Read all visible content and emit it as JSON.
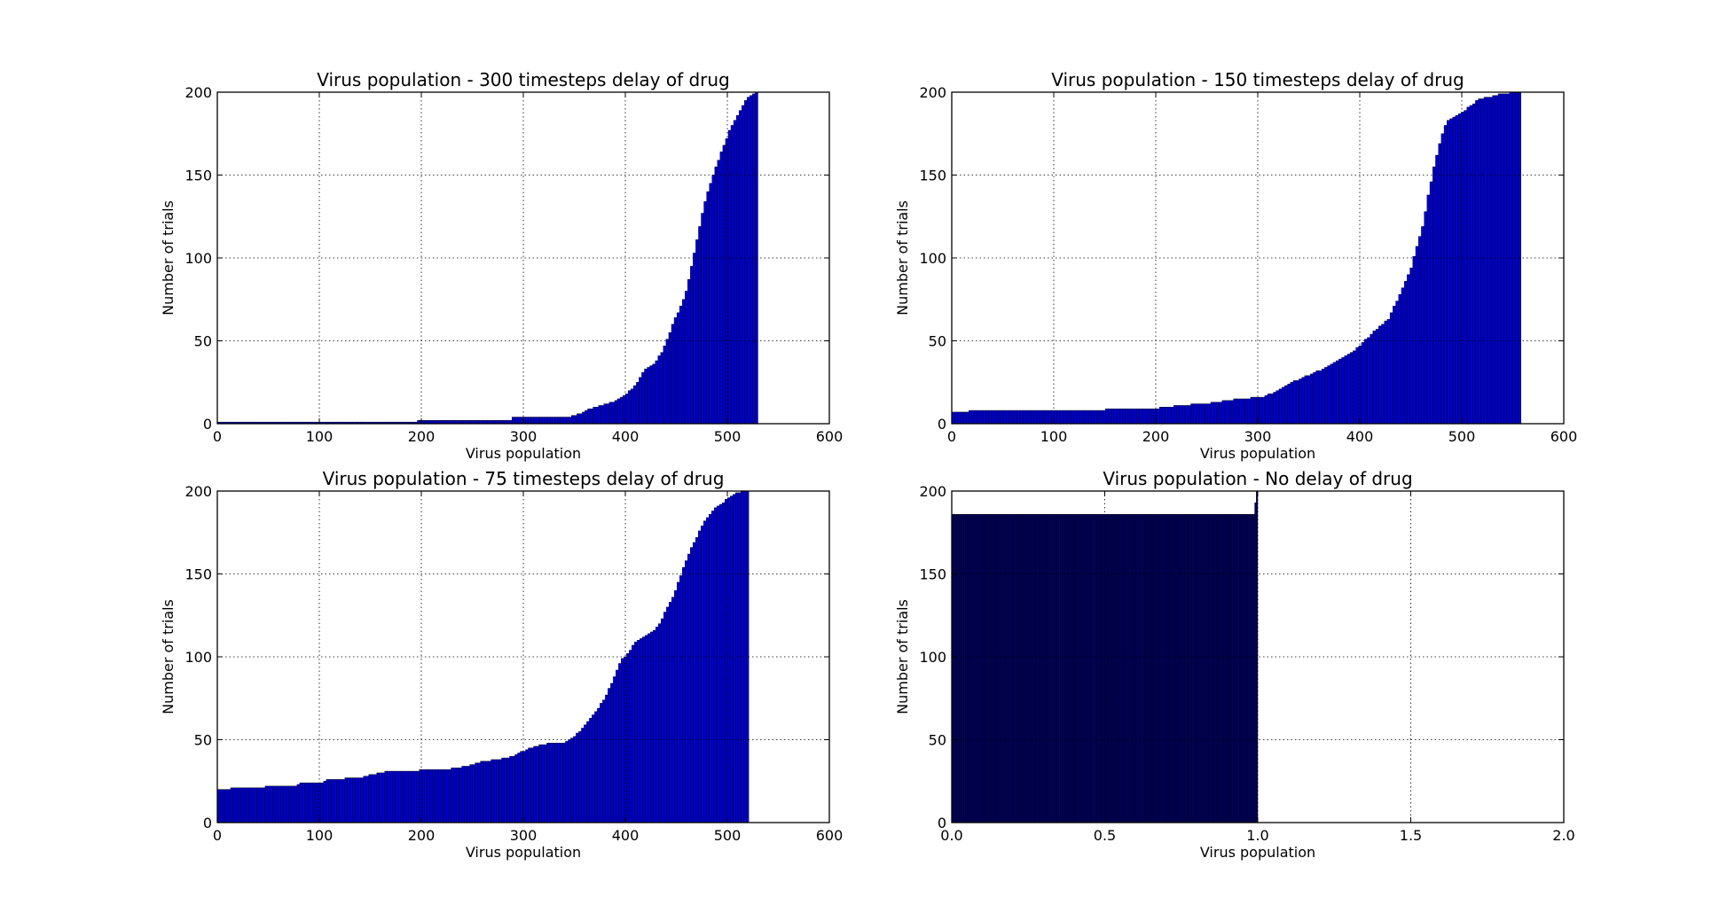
{
  "chart_data": [
    {
      "type": "bar",
      "title": "Virus population - 300 timesteps delay of drug",
      "xlabel": "Virus population",
      "ylabel": "Number of trials",
      "xlim": [
        0,
        600
      ],
      "ylim": [
        0,
        200
      ],
      "xticks": [
        "0",
        "100",
        "200",
        "300",
        "400",
        "500",
        "600"
      ],
      "yticks": [
        "0",
        "50",
        "100",
        "150",
        "200"
      ],
      "grid": true,
      "bar_color": "#0000cc",
      "curve": [
        [
          0,
          1
        ],
        [
          195,
          1
        ],
        [
          195,
          2
        ],
        [
          290,
          2
        ],
        [
          290,
          4
        ],
        [
          345,
          4
        ],
        [
          355,
          6
        ],
        [
          365,
          9
        ],
        [
          375,
          11
        ],
        [
          388,
          13
        ],
        [
          398,
          17
        ],
        [
          405,
          20
        ],
        [
          412,
          25
        ],
        [
          418,
          32
        ],
        [
          428,
          36
        ],
        [
          435,
          42
        ],
        [
          442,
          52
        ],
        [
          448,
          62
        ],
        [
          455,
          72
        ],
        [
          460,
          80
        ],
        [
          465,
          95
        ],
        [
          470,
          110
        ],
        [
          475,
          125
        ],
        [
          480,
          138
        ],
        [
          486,
          150
        ],
        [
          492,
          160
        ],
        [
          498,
          170
        ],
        [
          503,
          178
        ],
        [
          510,
          186
        ],
        [
          516,
          193
        ],
        [
          522,
          198
        ],
        [
          528,
          200
        ],
        [
          530,
          200
        ]
      ]
    },
    {
      "type": "bar",
      "title": "Virus population - 150 timesteps delay of drug",
      "xlabel": "Virus population",
      "ylabel": "Number of trials",
      "xlim": [
        0,
        600
      ],
      "ylim": [
        0,
        200
      ],
      "xticks": [
        "0",
        "100",
        "200",
        "300",
        "400",
        "500",
        "600"
      ],
      "yticks": [
        "0",
        "50",
        "100",
        "150",
        "200"
      ],
      "grid": true,
      "bar_color": "#0000cc",
      "curve": [
        [
          0,
          7
        ],
        [
          17,
          7
        ],
        [
          17,
          8
        ],
        [
          150,
          8
        ],
        [
          150,
          9
        ],
        [
          200,
          9
        ],
        [
          210,
          10
        ],
        [
          225,
          11
        ],
        [
          245,
          12
        ],
        [
          260,
          13
        ],
        [
          280,
          15
        ],
        [
          305,
          16
        ],
        [
          320,
          20
        ],
        [
          330,
          24
        ],
        [
          345,
          28
        ],
        [
          360,
          32
        ],
        [
          375,
          37
        ],
        [
          390,
          42
        ],
        [
          400,
          47
        ],
        [
          410,
          53
        ],
        [
          420,
          59
        ],
        [
          428,
          63
        ],
        [
          435,
          72
        ],
        [
          442,
          82
        ],
        [
          450,
          93
        ],
        [
          456,
          107
        ],
        [
          462,
          120
        ],
        [
          468,
          140
        ],
        [
          473,
          155
        ],
        [
          478,
          168
        ],
        [
          485,
          182
        ],
        [
          495,
          186
        ],
        [
          505,
          190
        ],
        [
          515,
          195
        ],
        [
          525,
          197
        ],
        [
          540,
          199
        ],
        [
          556,
          200
        ],
        [
          558,
          200
        ]
      ]
    },
    {
      "type": "bar",
      "title": "Virus population - 75 timesteps delay of drug",
      "xlabel": "Virus population",
      "ylabel": "Number of trials",
      "xlim": [
        0,
        600
      ],
      "ylim": [
        0,
        200
      ],
      "xticks": [
        "0",
        "100",
        "200",
        "300",
        "400",
        "500",
        "600"
      ],
      "yticks": [
        "0",
        "50",
        "100",
        "150",
        "200"
      ],
      "grid": true,
      "bar_color": "#0000cc",
      "curve": [
        [
          0,
          20
        ],
        [
          12,
          20
        ],
        [
          15,
          21
        ],
        [
          47,
          21
        ],
        [
          47,
          22
        ],
        [
          78,
          22
        ],
        [
          80,
          24
        ],
        [
          105,
          24
        ],
        [
          107,
          26
        ],
        [
          125,
          26
        ],
        [
          127,
          27
        ],
        [
          140,
          27
        ],
        [
          150,
          29
        ],
        [
          160,
          30
        ],
        [
          170,
          31
        ],
        [
          225,
          32
        ],
        [
          245,
          34
        ],
        [
          262,
          37
        ],
        [
          285,
          39
        ],
        [
          300,
          43
        ],
        [
          312,
          46
        ],
        [
          325,
          48
        ],
        [
          340,
          48
        ],
        [
          350,
          52
        ],
        [
          360,
          58
        ],
        [
          370,
          66
        ],
        [
          380,
          75
        ],
        [
          388,
          86
        ],
        [
          395,
          97
        ],
        [
          402,
          102
        ],
        [
          412,
          110
        ],
        [
          422,
          113
        ],
        [
          432,
          118
        ],
        [
          440,
          128
        ],
        [
          448,
          138
        ],
        [
          455,
          150
        ],
        [
          462,
          162
        ],
        [
          470,
          172
        ],
        [
          478,
          182
        ],
        [
          488,
          190
        ],
        [
          500,
          195
        ],
        [
          510,
          199
        ],
        [
          518,
          200
        ],
        [
          521,
          200
        ]
      ]
    },
    {
      "type": "bar",
      "title": "Virus population - No delay of drug",
      "xlabel": "Virus population",
      "ylabel": "Number of trials",
      "xlim": [
        0.0,
        2.0
      ],
      "ylim": [
        0,
        200
      ],
      "xticks": [
        "0.0",
        "0.5",
        "1.0",
        "1.5",
        "2.0"
      ],
      "yticks": [
        "0",
        "50",
        "100",
        "150",
        "200"
      ],
      "grid": true,
      "bar_color": "#000066",
      "curve": [
        [
          0,
          186
        ],
        [
          0.99,
          186
        ],
        [
          0.995,
          200
        ],
        [
          1.0,
          200
        ]
      ]
    }
  ]
}
